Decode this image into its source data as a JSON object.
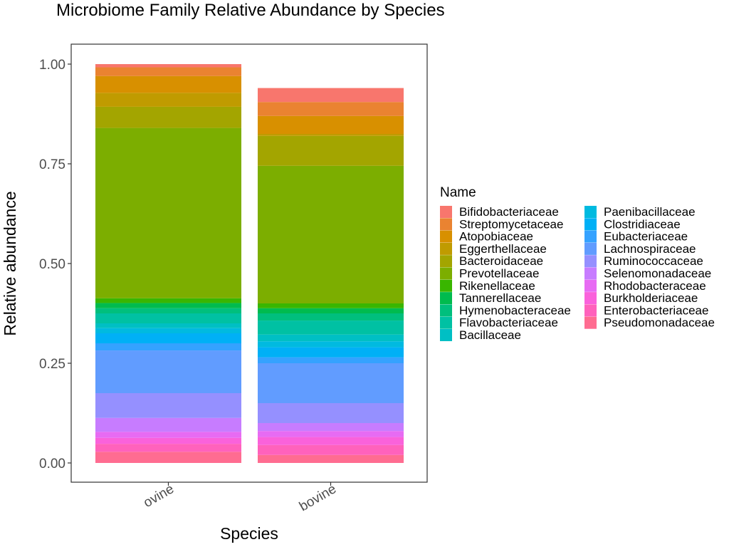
{
  "chart_data": {
    "type": "bar",
    "stacked": true,
    "title": "Microbiome Family Relative Abundance by Species",
    "xlabel": "Species",
    "ylabel": "Relative abundance",
    "ylim": [
      0,
      1
    ],
    "yticks": [
      "0.00",
      "0.25",
      "0.50",
      "0.75",
      "1.00"
    ],
    "categories": [
      "ovine",
      "bovine"
    ],
    "legend_title": "Name",
    "legend_position": "right",
    "grid": false,
    "series": [
      {
        "name": "Bifidobacteriaceae",
        "color": "#F8766D",
        "values": [
          0.008,
          0.035
        ]
      },
      {
        "name": "Streptomycetaceae",
        "color": "#EA8331",
        "values": [
          0.022,
          0.035
        ]
      },
      {
        "name": "Atopobiaceae",
        "color": "#D89000",
        "values": [
          0.042,
          0.045
        ]
      },
      {
        "name": "Eggerthellaceae",
        "color": "#C09B00",
        "values": [
          0.035,
          0.005
        ]
      },
      {
        "name": "Bacteroidaceae",
        "color": "#A3A500",
        "values": [
          0.053,
          0.075
        ]
      },
      {
        "name": "Prevotellaceae",
        "color": "#7CAE00",
        "values": [
          0.427,
          0.345
        ]
      },
      {
        "name": "Rikenellaceae",
        "color": "#39B600",
        "values": [
          0.012,
          0.012
        ]
      },
      {
        "name": "Tannerellaceae",
        "color": "#00BB4E",
        "values": [
          0.013,
          0.013
        ]
      },
      {
        "name": "Hymenobacteraceae",
        "color": "#00BF7D",
        "values": [
          0.013,
          0.018
        ]
      },
      {
        "name": "Flavobacteriaceae",
        "color": "#00C1A3",
        "values": [
          0.025,
          0.035
        ]
      },
      {
        "name": "Bacillaceae",
        "color": "#00BFC4",
        "values": [
          0.012,
          0.017
        ]
      },
      {
        "name": "Paenibacillaceae",
        "color": "#00BAE0",
        "values": [
          0.013,
          0.015
        ]
      },
      {
        "name": "Clostridiaceae",
        "color": "#00B0F6",
        "values": [
          0.025,
          0.025
        ]
      },
      {
        "name": "Eubacteriaceae",
        "color": "#35A2FF",
        "values": [
          0.018,
          0.015
        ]
      },
      {
        "name": "Lachnospiraceae",
        "color": "#619CFF",
        "values": [
          0.107,
          0.1
        ]
      },
      {
        "name": "Ruminococcaceae",
        "color": "#9590FF",
        "values": [
          0.062,
          0.05
        ]
      },
      {
        "name": "Selenomonadaceae",
        "color": "#C77CFF",
        "values": [
          0.035,
          0.02
        ]
      },
      {
        "name": "Rhodobacteraceae",
        "color": "#E76BF3",
        "values": [
          0.015,
          0.015
        ]
      },
      {
        "name": "Burkholderiaceae",
        "color": "#FA62DB",
        "values": [
          0.015,
          0.02
        ]
      },
      {
        "name": "Enterobacteriaceae",
        "color": "#FF62BC",
        "values": [
          0.02,
          0.025
        ]
      },
      {
        "name": "Pseudomonadaceae",
        "color": "#FF6C91",
        "values": [
          0.028,
          0.02
        ]
      }
    ]
  }
}
